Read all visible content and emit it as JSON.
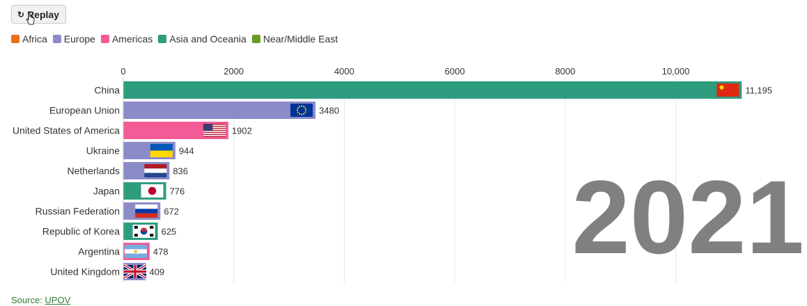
{
  "controls": {
    "replay_label": "Replay"
  },
  "legend": [
    {
      "label": "Africa",
      "color": "#e8711a"
    },
    {
      "label": "Europe",
      "color": "#8b8bc8"
    },
    {
      "label": "Americas",
      "color": "#f35b96"
    },
    {
      "label": "Asia and Oceania",
      "color": "#2e9c7e"
    },
    {
      "label": "Near/Middle East",
      "color": "#6b9a1e"
    }
  ],
  "chart_data": {
    "type": "bar",
    "orientation": "horizontal",
    "year": "2021",
    "x_ticks": [
      0,
      2000,
      4000,
      6000,
      8000,
      10000
    ],
    "x_tick_labels": [
      "0",
      "2000",
      "4000",
      "6000",
      "8000",
      "10,000"
    ],
    "xlim": [
      0,
      11200
    ],
    "grid": true,
    "categories": [
      "China",
      "European Union",
      "United States of America",
      "Ukraine",
      "Netherlands",
      "Japan",
      "Russian Federation",
      "Republic of Korea",
      "Argentina",
      "United Kingdom"
    ],
    "values": [
      11195,
      3480,
      1902,
      944,
      836,
      776,
      672,
      625,
      478,
      409
    ],
    "value_labels": [
      "11,195",
      "3480",
      "1902",
      "944",
      "836",
      "776",
      "672",
      "625",
      "478",
      "409"
    ],
    "regions": [
      "Asia and Oceania",
      "Europe",
      "Americas",
      "Europe",
      "Europe",
      "Asia and Oceania",
      "Europe",
      "Asia and Oceania",
      "Americas",
      "Europe"
    ],
    "flags": [
      "flag-china-icon",
      "flag-eu-icon",
      "flag-usa-icon",
      "flag-ukraine-icon",
      "flag-netherlands-icon",
      "flag-japan-icon",
      "flag-russia-icon",
      "flag-korea-icon",
      "flag-argentina-icon",
      "flag-uk-icon"
    ]
  },
  "source": {
    "prefix": "Source: ",
    "link": "UPOV"
  }
}
